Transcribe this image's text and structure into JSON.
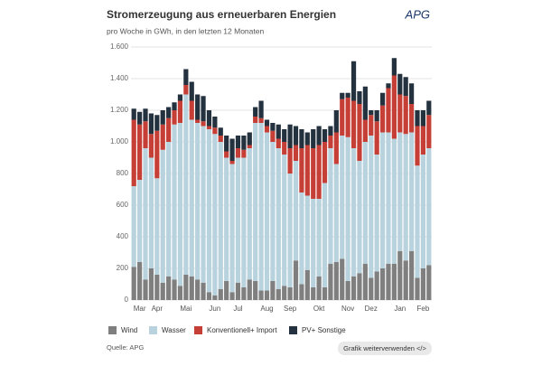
{
  "chart_data": {
    "type": "stacked_bar",
    "title": "Stromerzeugung aus erneuerbaren Energien",
    "subtitle": "pro Woche in GWh, in den letzten 12 Monaten",
    "logo": "APG",
    "source": "Quelle: APG",
    "button_label": "Grafik weiterverwenden </>",
    "categories": [
      null,
      "Mar",
      null,
      null,
      "Apr",
      null,
      null,
      null,
      null,
      "Mai",
      null,
      null,
      null,
      null,
      "Jun",
      null,
      null,
      null,
      "Jul",
      null,
      null,
      null,
      null,
      "Aug",
      null,
      null,
      null,
      "Sep",
      null,
      null,
      null,
      null,
      "Okt",
      null,
      null,
      null,
      null,
      "Nov",
      null,
      null,
      null,
      "Dez",
      null,
      null,
      null,
      null,
      "Jan",
      null,
      null,
      null,
      "Feb",
      null
    ],
    "series": [
      {
        "name": "Wind",
        "color": "#7f7f7f",
        "values": [
          210,
          240,
          130,
          200,
          160,
          110,
          150,
          130,
          90,
          160,
          150,
          130,
          110,
          50,
          30,
          70,
          120,
          50,
          110,
          80,
          130,
          120,
          60,
          60,
          120,
          70,
          90,
          80,
          250,
          100,
          190,
          80,
          150,
          80,
          230,
          240,
          260,
          120,
          150,
          170,
          230,
          140,
          180,
          200,
          230,
          230,
          310,
          250,
          310,
          140,
          200,
          220
        ]
      },
      {
        "name": "Wasser",
        "color": "#b9d3de",
        "values": [
          510,
          520,
          830,
          700,
          610,
          840,
          850,
          980,
          1030,
          1140,
          990,
          990,
          990,
          1030,
          1020,
          930,
          780,
          810,
          790,
          820,
          830,
          1000,
          1060,
          1000,
          880,
          890,
          830,
          720,
          630,
          580,
          470,
          560,
          490,
          660,
          730,
          620,
          780,
          910,
          810,
          710,
          770,
          900,
          740,
          860,
          830,
          790,
          750,
          800,
          750,
          710,
          720,
          740
        ]
      },
      {
        "name": "Konventionell+ Import",
        "color": "#c63f36",
        "values": [
          420,
          350,
          170,
          150,
          300,
          160,
          150,
          90,
          140,
          60,
          120,
          20,
          30,
          20,
          40,
          40,
          40,
          20,
          60,
          50,
          20,
          40,
          30,
          40,
          70,
          60,
          80,
          160,
          100,
          280,
          320,
          320,
          340,
          260,
          80,
          200,
          230,
          250,
          300,
          360,
          140,
          130,
          210,
          170,
          280,
          400,
          240,
          240,
          180,
          250,
          180,
          210
        ]
      },
      {
        "name": "PV+ Sonstige",
        "color": "#24323f",
        "values": [
          70,
          80,
          80,
          130,
          100,
          90,
          70,
          50,
          40,
          100,
          120,
          160,
          160,
          100,
          70,
          50,
          100,
          140,
          80,
          90,
          80,
          60,
          110,
          40,
          50,
          90,
          80,
          150,
          120,
          120,
          80,
          120,
          120,
          80,
          60,
          140,
          40,
          30,
          250,
          80,
          210,
          30,
          70,
          80,
          30,
          110,
          130,
          120,
          130,
          100,
          100,
          90
        ]
      }
    ],
    "ylim": [
      0,
      1600
    ],
    "yticks": [
      0,
      200,
      400,
      600,
      800,
      {
        "value": 1000,
        "label": "1.000"
      },
      {
        "value": 1200,
        "label": "1.200"
      },
      {
        "value": 1400,
        "label": "1.400"
      },
      {
        "value": 1600,
        "label": "1.600"
      }
    ],
    "grid": true
  }
}
